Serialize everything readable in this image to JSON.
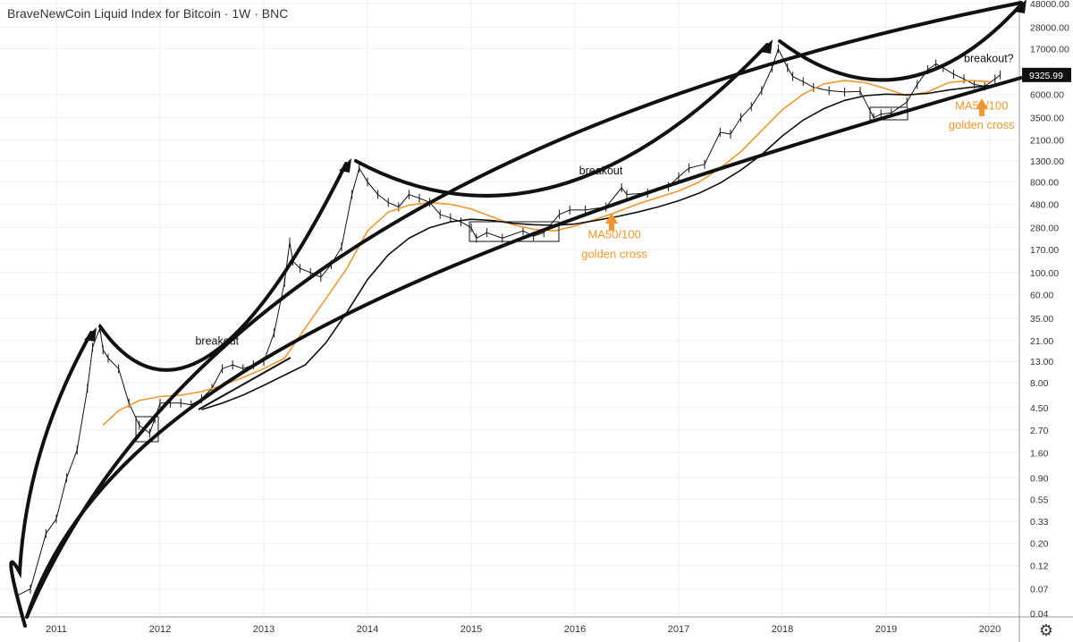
{
  "header": {
    "title": "BraveNewCoin Liquid Index for Bitcoin · 1W · BNC"
  },
  "colors": {
    "accent": "#f0962b",
    "line": "#111111",
    "grid": "#eeeeee",
    "price_tag_bg": "#111111"
  },
  "icons": {
    "settings": "gear-icon"
  },
  "chart_data": {
    "type": "line",
    "title": "BraveNewCoin Liquid Index for Bitcoin · 1W · BNC",
    "scale": "log",
    "grid": true,
    "xlabel": "",
    "ylabel": "",
    "x_ticks": [
      "2011",
      "2012",
      "2013",
      "2014",
      "2015",
      "2016",
      "2017",
      "2018",
      "2019",
      "2020"
    ],
    "y_ticks": [
      "48000.00",
      "28000.00",
      "17000.00",
      "6000.00",
      "3500.00",
      "2100.00",
      "1300.00",
      "800.00",
      "480.00",
      "280.00",
      "170.00",
      "100.00",
      "60.00",
      "35.00",
      "21.00",
      "13.00",
      "8.00",
      "4.50",
      "2.70",
      "1.60",
      "0.90",
      "0.55",
      "0.33",
      "0.20",
      "0.12",
      "0.07",
      "0.04"
    ],
    "last_price": "9325.99",
    "series": [
      {
        "x": [
          2010.62,
          2010.75,
          2010.9,
          2011.0,
          2011.1,
          2011.2,
          2011.3,
          2011.35,
          2011.42,
          2011.45,
          2011.5,
          2011.6,
          2011.7,
          2011.8,
          2011.9,
          2011.95,
          2012.0,
          2012.1,
          2012.2,
          2012.3,
          2012.4,
          2012.5,
          2012.6,
          2012.7,
          2012.8,
          2012.9,
          2013.0,
          2013.1,
          2013.2,
          2013.25,
          2013.28,
          2013.35,
          2013.45,
          2013.55,
          2013.65,
          2013.75,
          2013.85,
          2013.92,
          2014.0,
          2014.1,
          2014.2,
          2014.3,
          2014.4,
          2014.5,
          2014.6,
          2014.7,
          2014.8,
          2014.9,
          2015.0,
          2015.05,
          2015.15,
          2015.3,
          2015.5,
          2015.6,
          2015.7,
          2015.85,
          2015.95,
          2016.1,
          2016.3,
          2016.45,
          2016.5,
          2016.7,
          2016.9,
          2017.0,
          2017.1,
          2017.25,
          2017.4,
          2017.5,
          2017.6,
          2017.7,
          2017.8,
          2017.9,
          2017.96,
          2018.05,
          2018.1,
          2018.2,
          2018.3,
          2018.45,
          2018.6,
          2018.75,
          2018.88,
          2018.95,
          2019.05,
          2019.2,
          2019.3,
          2019.4,
          2019.48,
          2019.55,
          2019.65,
          2019.75,
          2019.85,
          2019.95,
          2020.05,
          2020.1
        ],
        "y": [
          0.06,
          0.07,
          0.25,
          0.35,
          0.9,
          1.7,
          7,
          18,
          28,
          17,
          14,
          11,
          5,
          3,
          2.5,
          3.5,
          5,
          5,
          5,
          4.8,
          5.5,
          7,
          11,
          12,
          11,
          12,
          13,
          25,
          80,
          200,
          130,
          110,
          100,
          90,
          120,
          180,
          600,
          1100,
          800,
          600,
          500,
          450,
          600,
          550,
          500,
          380,
          350,
          320,
          280,
          220,
          250,
          220,
          260,
          230,
          250,
          380,
          420,
          420,
          450,
          700,
          600,
          620,
          720,
          900,
          1100,
          1200,
          2500,
          2400,
          3500,
          4500,
          6500,
          11000,
          17000,
          11000,
          9000,
          8000,
          7000,
          6500,
          6300,
          6400,
          3500,
          3800,
          3900,
          5000,
          7500,
          10500,
          12000,
          11000,
          9500,
          8500,
          7500,
          7200,
          8500,
          9325
        ]
      },
      {
        "x": [
          2011.45,
          2011.6,
          2011.8,
          2012.0,
          2012.2,
          2012.4,
          2012.6,
          2012.8,
          2013.0,
          2013.2,
          2013.4,
          2013.6,
          2013.8,
          2014.0,
          2014.2,
          2014.4,
          2014.6,
          2014.8,
          2015.0,
          2015.2,
          2015.4,
          2015.6,
          2015.8,
          2016.0,
          2016.2,
          2016.4,
          2016.6,
          2016.8,
          2017.0,
          2017.2,
          2017.4,
          2017.6,
          2017.8,
          2018.0,
          2018.2,
          2018.4,
          2018.6,
          2018.8,
          2019.0,
          2019.2,
          2019.4,
          2019.6,
          2019.8,
          2020.0
        ],
        "y": [
          3,
          4.2,
          5.3,
          5.8,
          6,
          6.5,
          7.5,
          9,
          11,
          14,
          28,
          55,
          110,
          260,
          400,
          470,
          500,
          480,
          430,
          360,
          300,
          270,
          260,
          290,
          340,
          400,
          480,
          560,
          650,
          800,
          1100,
          1600,
          2600,
          4200,
          6000,
          7600,
          8200,
          7800,
          6800,
          5800,
          6300,
          7800,
          8200,
          8000
        ]
      },
      {
        "x": [
          2012.4,
          2012.6,
          2012.8,
          2013.0,
          2013.2,
          2013.4,
          2013.6,
          2013.8,
          2014.0,
          2014.2,
          2014.4,
          2014.6,
          2014.8,
          2015.0,
          2015.2,
          2015.4,
          2015.6,
          2015.8,
          2016.0,
          2016.2,
          2016.4,
          2016.6,
          2016.8,
          2017.0,
          2017.2,
          2017.4,
          2017.6,
          2017.8,
          2018.0,
          2018.2,
          2018.4,
          2018.6,
          2018.8,
          2019.0,
          2019.2,
          2019.4,
          2019.6,
          2019.8,
          2020.0
        ],
        "y": [
          4.3,
          5,
          6,
          7.5,
          9.5,
          12,
          20,
          40,
          85,
          150,
          220,
          280,
          320,
          340,
          330,
          310,
          300,
          295,
          305,
          330,
          360,
          400,
          450,
          520,
          620,
          780,
          1050,
          1500,
          2300,
          3300,
          4300,
          5200,
          5800,
          6000,
          5900,
          6100,
          6600,
          7000,
          7300
        ]
      }
    ],
    "annotations": [
      {
        "text": "breakout",
        "x": 2012.55,
        "y": 19
      },
      {
        "text": "breakout",
        "x": 2016.25,
        "y": 950
      },
      {
        "text": "breakout?",
        "x": 2019.99,
        "y": 12500
      },
      {
        "text": "MA50/100",
        "x": 2016.38,
        "y": 220
      },
      {
        "text": "golden cross",
        "x": 2016.38,
        "y": 140
      },
      {
        "text": "MA50/100",
        "x": 2019.92,
        "y": 4200
      },
      {
        "text": "golden cross",
        "x": 2019.92,
        "y": 2700
      }
    ]
  }
}
